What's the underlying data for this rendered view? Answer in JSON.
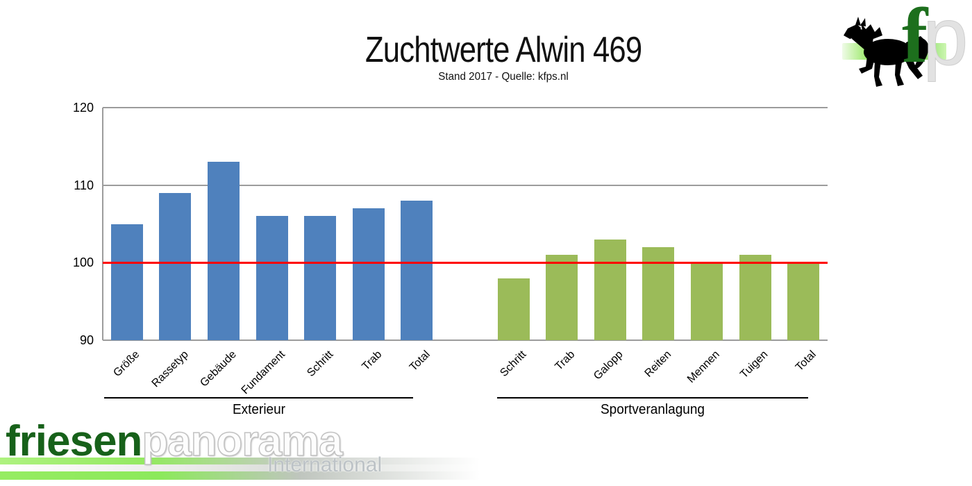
{
  "header": {
    "title": "Zuchtwerte Alwin 469",
    "subtitle": "Stand 2017 - Quelle: kfps.nl"
  },
  "chart_data": {
    "type": "bar",
    "title": "Zuchtwerte Alwin 469",
    "subtitle": "Stand 2017 - Quelle: kfps.nl",
    "ylim": [
      90,
      120
    ],
    "yticks": [
      90,
      100,
      110,
      120
    ],
    "grid": true,
    "legend": false,
    "reference_line": {
      "value": 100,
      "color": "#ff0000"
    },
    "groups": [
      {
        "label": "Exterieur",
        "color": "#4f81bd",
        "categories": [
          "Größe",
          "Rassetyp",
          "Gebäude",
          "Fundament",
          "Schritt",
          "Trab",
          "Total"
        ],
        "values": [
          105,
          109,
          113,
          106,
          106,
          107,
          108
        ]
      },
      {
        "label": "Sportveranlagung",
        "color": "#9bbb59",
        "categories": [
          "Schritt",
          "Trab",
          "Galopp",
          "Reiten",
          "Mennen",
          "Tuigen",
          "Total"
        ],
        "values": [
          98,
          101,
          103,
          102,
          100,
          101,
          100
        ]
      }
    ]
  },
  "logos": {
    "top_right": {
      "f": "f",
      "p": "p"
    },
    "bottom_left": {
      "friesen": "friesen",
      "panorama": "panorama",
      "international": "International"
    }
  },
  "colors": {
    "bar_blue": "#4f81bd",
    "bar_green": "#9bbb59",
    "reference_red": "#ff0000",
    "grid_gray": "#9c9c9c",
    "logo_dark_green": "#17611a",
    "logo_lime": "#8ce95b"
  }
}
